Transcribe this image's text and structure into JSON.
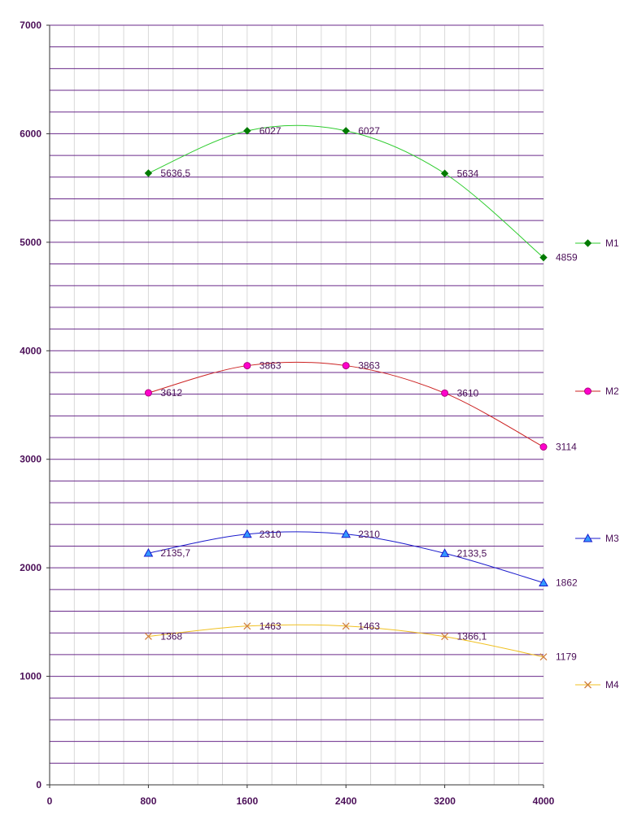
{
  "chart_data": {
    "type": "line",
    "title": "",
    "xlabel": "",
    "ylabel": "",
    "x": [
      800,
      1600,
      2400,
      3200,
      4000
    ],
    "xlim": [
      0,
      4000
    ],
    "ylim": [
      0,
      7000
    ],
    "x_ticks": [
      "0",
      "800",
      "1600",
      "2400",
      "3200",
      "4000"
    ],
    "y_ticks": [
      "0",
      "1000",
      "2000",
      "3000",
      "4000",
      "5000",
      "6000",
      "7000"
    ],
    "grid": true,
    "legend_position": "right",
    "axis_color": "#4b0f58",
    "gridline_color": "#6a2a8a",
    "series": [
      {
        "name": "M1",
        "values": [
          5636.5,
          6027,
          6027,
          5634,
          4859
        ],
        "labels": [
          "5636,5",
          "6027",
          "6027",
          "5634",
          "4859"
        ],
        "color": "#2ecc2e",
        "marker_color": "#007a00",
        "marker": "diamond"
      },
      {
        "name": "M2",
        "values": [
          3612,
          3863,
          3863,
          3610,
          3114
        ],
        "labels": [
          "3612",
          "3863",
          "3863",
          "3610",
          "3114"
        ],
        "color": "#cc2222",
        "marker_color": "#ff00cc",
        "marker": "circle"
      },
      {
        "name": "M3",
        "values": [
          2135.7,
          2310,
          2310,
          2133.5,
          1862
        ],
        "labels": [
          "2135,7",
          "2310",
          "2310",
          "2133,5",
          "1862"
        ],
        "color": "#1a1acc",
        "marker_color": "#3399ff",
        "marker": "triangle"
      },
      {
        "name": "M4",
        "values": [
          1368,
          1463,
          1463,
          1366.1,
          1179
        ],
        "labels": [
          "1368",
          "1463",
          "1463",
          "1366,1",
          "1179"
        ],
        "color": "#f0c020",
        "marker_color": "#d08040",
        "marker": "x"
      }
    ]
  }
}
